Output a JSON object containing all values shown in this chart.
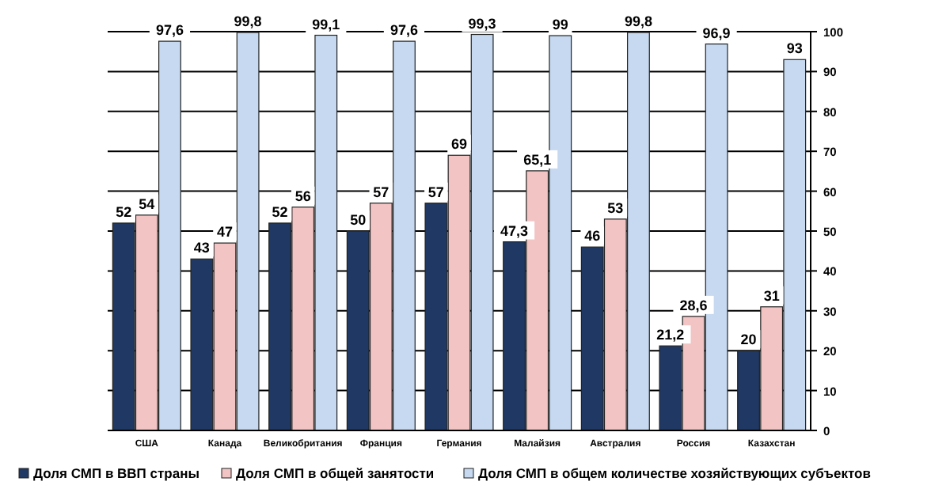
{
  "chart_data": {
    "type": "bar",
    "categories": [
      "США",
      "Канада",
      "Великобритания",
      "Франция",
      "Германия",
      "Малайзия",
      "Австралия",
      "Россия",
      "Казахстан"
    ],
    "series": [
      {
        "name": "Доля СМП в ВВП страны",
        "color": "#1f3864",
        "values": [
          52,
          43,
          52,
          50,
          57,
          47.3,
          46,
          21.2,
          20
        ],
        "value_labels": [
          "52",
          "43",
          "52",
          "50",
          "57",
          "47,3",
          "46",
          "21,2",
          "20"
        ]
      },
      {
        "name": "Доля СМП в общей занятости",
        "color": "#f2c4c4",
        "values": [
          54,
          47,
          56,
          57,
          69,
          65.1,
          53,
          28.6,
          31
        ],
        "value_labels": [
          "54",
          "47",
          "56",
          "57",
          "69",
          "65,1",
          "53",
          "28,6",
          "31"
        ]
      },
      {
        "name": "Доля СМП в общем количестве хозяйствующих субъектов",
        "color": "#c6d9f0",
        "values": [
          97.6,
          99.8,
          99.1,
          97.6,
          99.3,
          99,
          99.8,
          96.9,
          93
        ],
        "value_labels": [
          "97,6",
          "99,8",
          "99,1",
          "97,6",
          "99,3",
          "99",
          "99,8",
          "96,9",
          "93"
        ]
      }
    ],
    "ylim": [
      0,
      100
    ],
    "yticks": [
      0,
      10,
      20,
      30,
      40,
      50,
      60,
      70,
      80,
      90,
      100
    ],
    "grid": "y",
    "legend": "bottom"
  }
}
